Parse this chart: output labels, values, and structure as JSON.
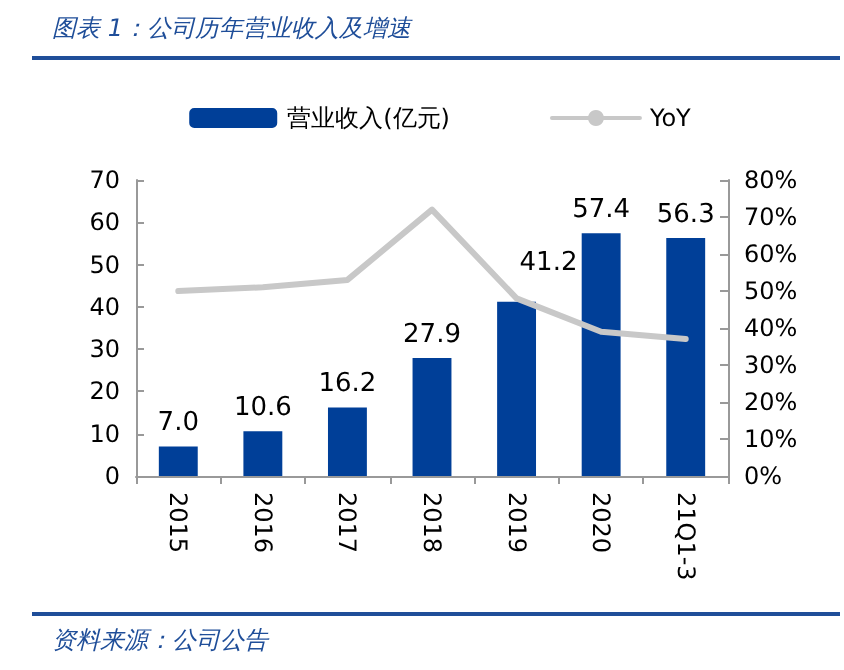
{
  "chart_data": {
    "type": "bar",
    "title": "图表 1：公司历年营业收入及增速",
    "annotations": [
      "资料来源：公司公告"
    ],
    "categories": [
      "2015",
      "2016",
      "2017",
      "2018",
      "2019",
      "2020",
      "21Q1-3"
    ],
    "series": [
      {
        "name": "营业收入(亿元)",
        "color": "#003f98",
        "values": [
          7.0,
          10.6,
          16.2,
          27.9,
          41.2,
          57.4,
          56.3
        ],
        "value_labels": [
          "7.0",
          "10.6",
          "16.2",
          "27.9",
          "41.2",
          "57.4",
          "56.3"
        ]
      },
      {
        "name": "YoY",
        "type": "line",
        "axis": "y2",
        "color": "#c8c8c8",
        "values": [
          50,
          51,
          53,
          72,
          48,
          39,
          37
        ]
      }
    ],
    "ylim": [
      0,
      70
    ],
    "yticks": [
      0,
      10,
      20,
      30,
      40,
      50,
      60,
      70
    ],
    "y2lim": [
      0,
      80
    ],
    "y2ticks": [
      {
        "value": 0,
        "label": "0%"
      },
      {
        "value": 10,
        "label": "10%"
      },
      {
        "value": 20,
        "label": "20%"
      },
      {
        "value": 30,
        "label": "30%"
      },
      {
        "value": 40,
        "label": "40%"
      },
      {
        "value": 50,
        "label": "50%"
      },
      {
        "value": 60,
        "label": "60%"
      },
      {
        "value": 70,
        "label": "70%"
      },
      {
        "value": 80,
        "label": "80%"
      }
    ],
    "legend": "top",
    "grid": false,
    "marker": "none",
    "line_style": "solid"
  }
}
